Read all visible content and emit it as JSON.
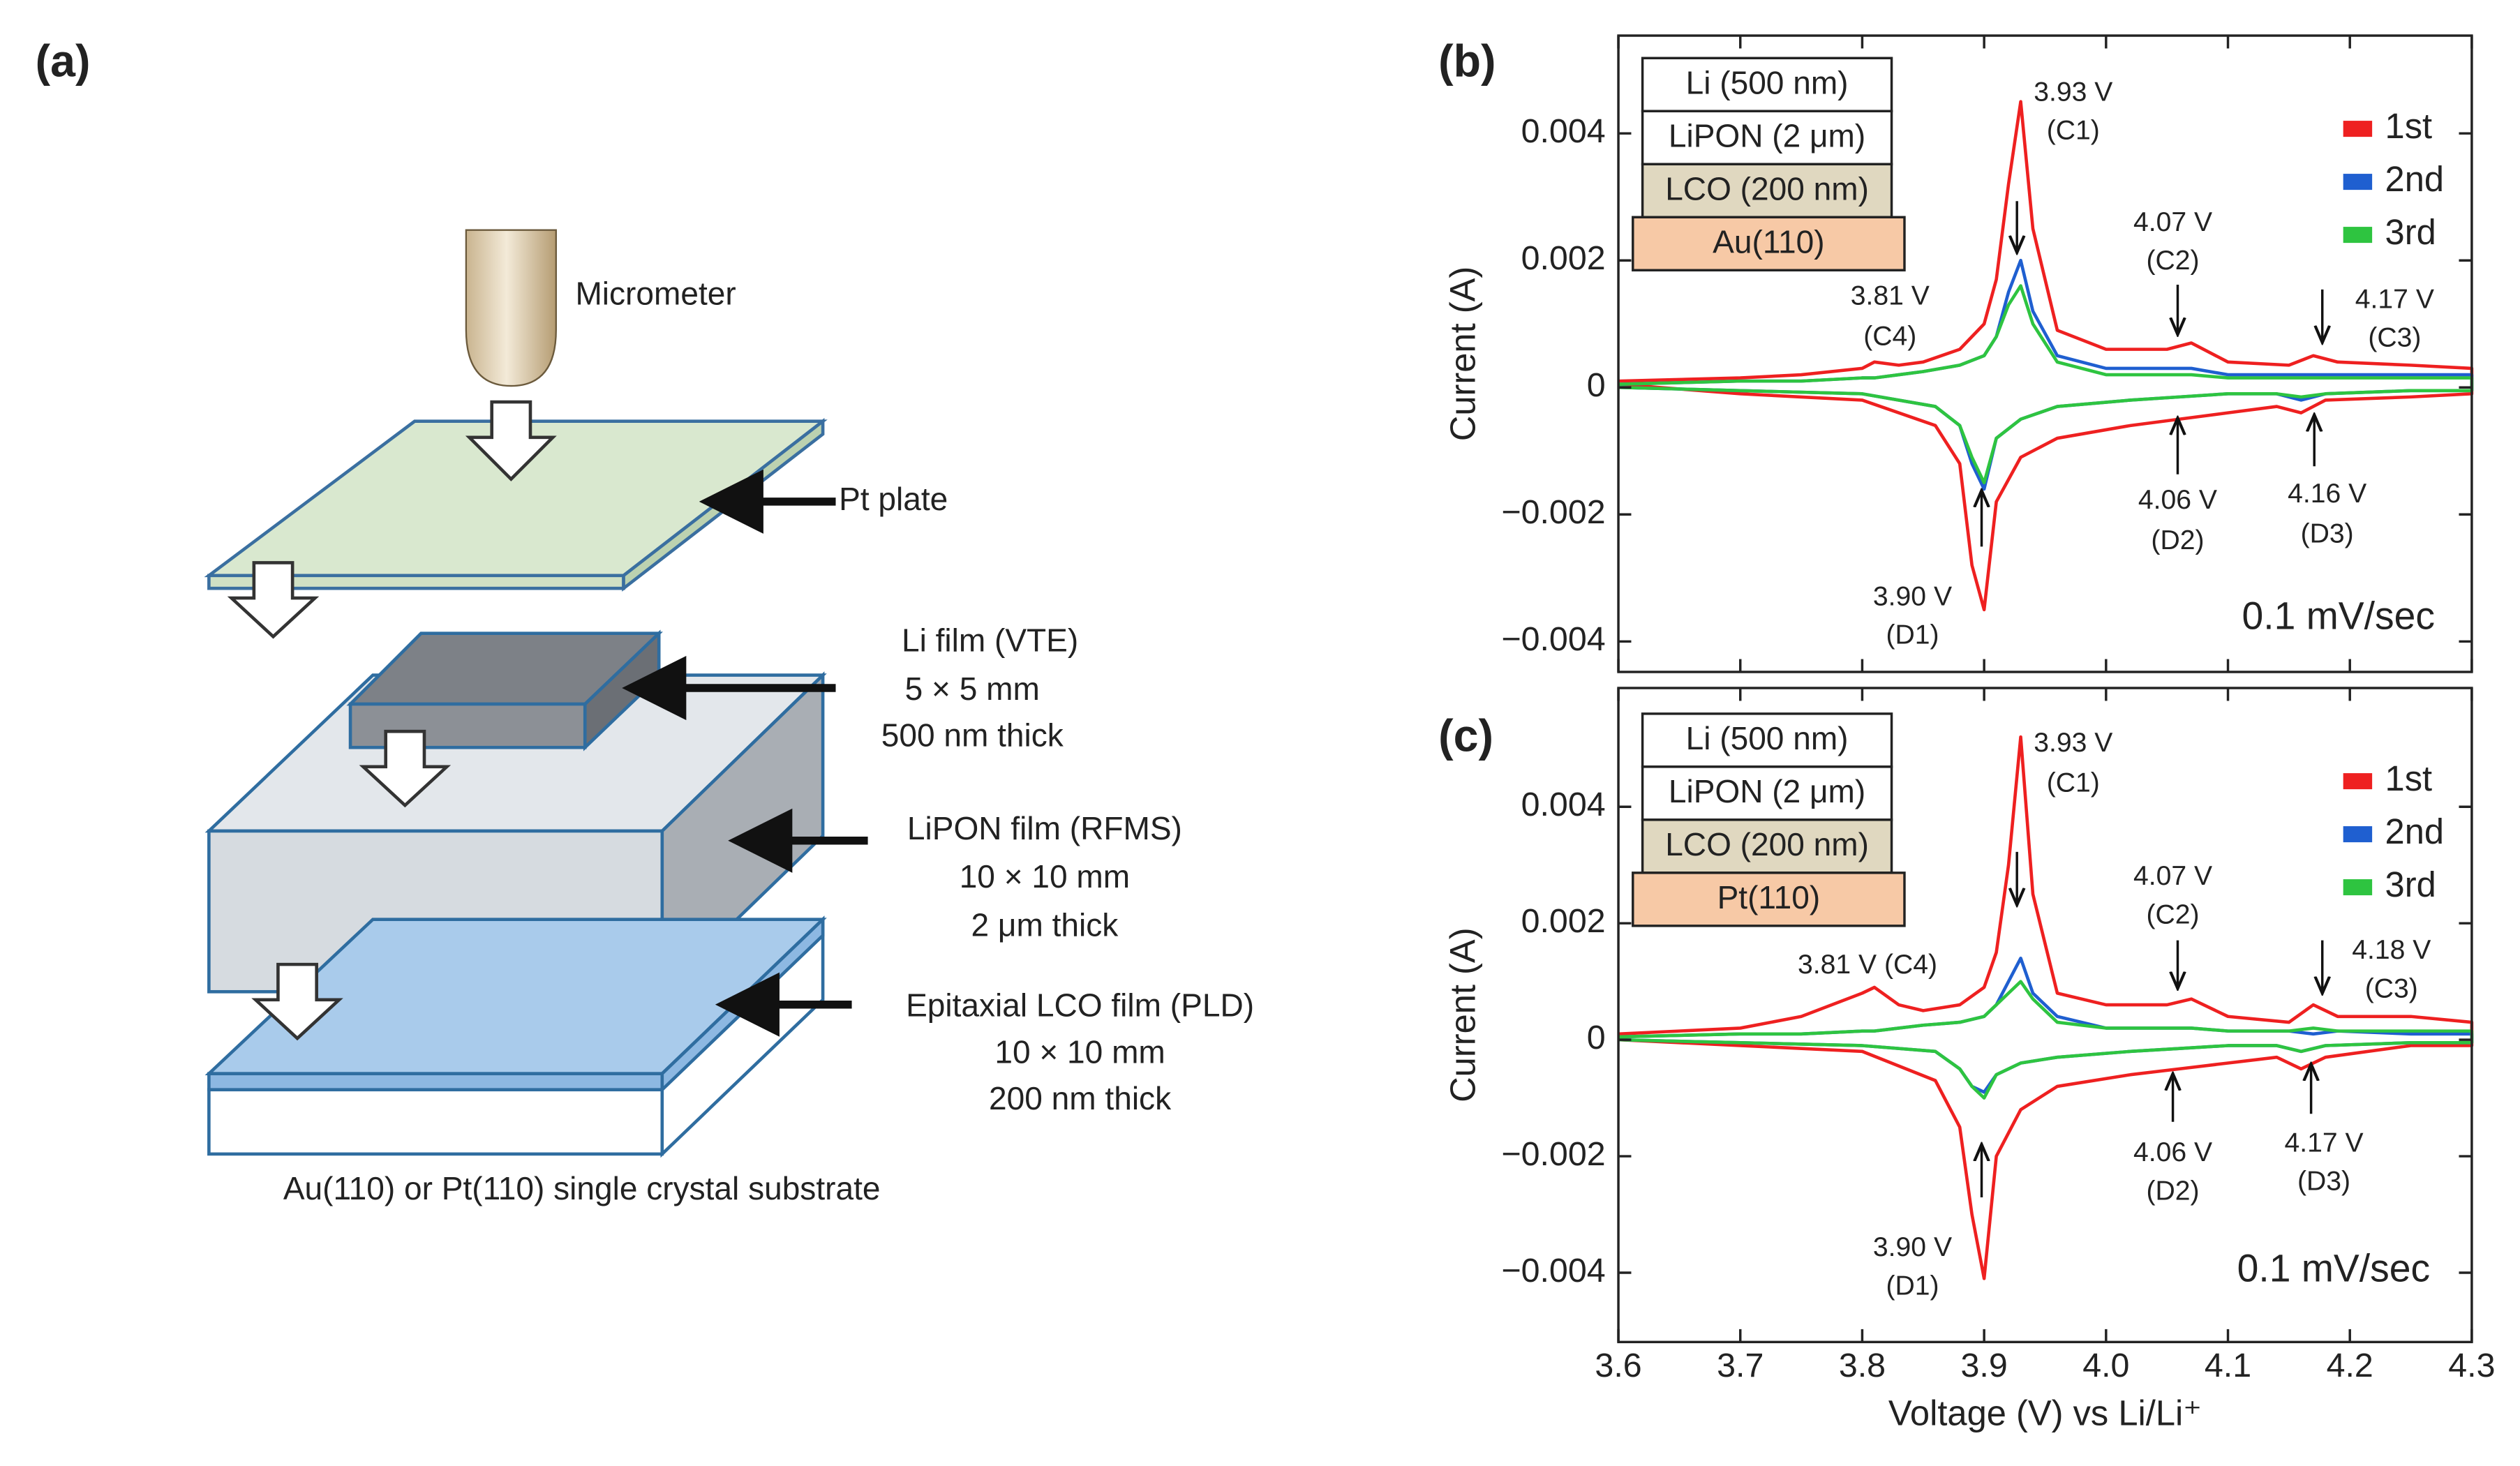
{
  "panel_a": {
    "label": "(a)",
    "micrometer": "Micrometer",
    "pt_plate": "Pt plate",
    "li_film": [
      "Li film (VTE)",
      "5 × 5 mm",
      "500 nm thick"
    ],
    "lipon_film": [
      "LiPON film (RFMS)",
      "10 × 10 mm",
      "2 μm thick"
    ],
    "lco_film": [
      "Epitaxial LCO film (PLD)",
      "10 × 10 mm",
      "200 nm thick"
    ],
    "substrate": "Au(110) or Pt(110) single crystal substrate"
  },
  "chart_data": [
    {
      "type": "line",
      "panel": "(b)",
      "ylabel": "Current (A)",
      "stack": [
        "Li (500 nm)",
        "LiPON (2 μm)",
        "LCO (200 nm)",
        "Au(110)"
      ],
      "annotations": [
        "3.93 V",
        "(C1)",
        "4.07 V",
        "(C2)",
        "3.81 V",
        "(C4)",
        "4.17 V",
        "(C3)",
        "4.06 V",
        "(D2)",
        "4.16 V",
        "(D3)",
        "3.90 V",
        "(D1)",
        "0.1 mV/sec"
      ],
      "xlim": [
        3.6,
        4.3
      ],
      "ylim": [
        -0.00448,
        0.00554
      ],
      "xticks": [
        3.6,
        3.7,
        3.8,
        3.9,
        4,
        4.1,
        4.2,
        4.3
      ],
      "x_tick_labels": false,
      "yticks": [
        {
          "value": -0.004,
          "label": "−0.004"
        },
        {
          "value": -0.002,
          "label": "−0.002"
        },
        0,
        0.002,
        0.004
      ],
      "x": [
        3.6,
        3.7,
        3.75,
        3.8,
        3.81,
        3.83,
        3.85,
        3.88,
        3.9,
        3.91,
        3.92,
        3.93,
        3.94,
        3.96,
        4.0,
        4.05,
        4.07,
        4.1,
        4.15,
        4.17,
        4.19,
        4.25,
        4.3,
        4.3,
        4.25,
        4.18,
        4.16,
        4.14,
        4.1,
        4.06,
        4.02,
        3.96,
        3.93,
        3.91,
        3.9,
        3.89,
        3.88,
        3.86,
        3.8,
        3.7,
        3.6
      ],
      "series": [
        {
          "name": "1st",
          "color": "#ee2020",
          "values": [
            0.0001,
            0.00015,
            0.0002,
            0.0003,
            0.0004,
            0.00035,
            0.0004,
            0.0006,
            0.001,
            0.0017,
            0.0032,
            0.0045,
            0.0025,
            0.0009,
            0.0006,
            0.0006,
            0.0007,
            0.0004,
            0.00035,
            0.0005,
            0.0004,
            0.00035,
            0.0003,
            -0.0001,
            -0.00015,
            -0.0002,
            -0.0004,
            -0.0003,
            -0.0004,
            -0.0005,
            -0.0006,
            -0.0008,
            -0.0011,
            -0.0018,
            -0.0035,
            -0.0028,
            -0.0012,
            -0.0006,
            -0.0002,
            -0.0001,
            5e-05
          ]
        },
        {
          "name": "2nd",
          "color": "#1f5fd0",
          "values": [
            5e-05,
            0.0001,
            0.0001,
            0.00015,
            0.00015,
            0.0002,
            0.00025,
            0.00035,
            0.0005,
            0.0008,
            0.0015,
            0.002,
            0.0012,
            0.0005,
            0.0003,
            0.0003,
            0.0003,
            0.0002,
            0.0002,
            0.0002,
            0.0002,
            0.0002,
            0.0002,
            -5e-05,
            -5e-05,
            -0.0001,
            -0.0002,
            -0.0001,
            -0.0001,
            -0.00015,
            -0.0002,
            -0.0003,
            -0.0005,
            -0.0008,
            -0.0016,
            -0.0012,
            -0.0006,
            -0.0003,
            -0.0001,
            -5e-05,
            0
          ]
        },
        {
          "name": "3rd",
          "color": "#2ec440",
          "values": [
            5e-05,
            0.0001,
            0.0001,
            0.00015,
            0.00015,
            0.0002,
            0.00025,
            0.00035,
            0.0005,
            0.0008,
            0.0013,
            0.0016,
            0.001,
            0.0004,
            0.0002,
            0.0002,
            0.0002,
            0.00015,
            0.00015,
            0.00015,
            0.00015,
            0.00015,
            0.00015,
            -5e-05,
            -5e-05,
            -0.0001,
            -0.00015,
            -0.0001,
            -0.0001,
            -0.00015,
            -0.0002,
            -0.0003,
            -0.0005,
            -0.0008,
            -0.0015,
            -0.0011,
            -0.0006,
            -0.0003,
            -0.0001,
            -5e-05,
            0
          ]
        }
      ]
    },
    {
      "type": "line",
      "panel": "(c)",
      "ylabel": "Current (A)",
      "xlabel": "Voltage (V) vs Li/Li⁺",
      "stack": [
        "Li (500 nm)",
        "LiPON (2 μm)",
        "LCO (200 nm)",
        "Pt(110)"
      ],
      "annotations": [
        "3.93 V",
        "(C1)",
        "4.07 V",
        "(C2)",
        "3.81 V (C4)",
        "4.18 V",
        "(C3)",
        "4.06 V",
        "(D2)",
        "4.17 V",
        "(D3)",
        "3.90 V",
        "(D1)",
        "0.1 mV/sec"
      ],
      "xlim": [
        3.6,
        4.3
      ],
      "ylim": [
        -0.00519,
        0.00604
      ],
      "xticks": [
        3.6,
        3.7,
        3.8,
        3.9,
        {
          "value": 4,
          "label": "4.0"
        },
        4.1,
        4.2,
        4.3
      ],
      "x_tick_labels": true,
      "yticks": [
        {
          "value": -0.004,
          "label": "−0.004"
        },
        {
          "value": -0.002,
          "label": "−0.002"
        },
        0,
        0.002,
        0.004
      ],
      "x": [
        3.6,
        3.7,
        3.75,
        3.8,
        3.81,
        3.83,
        3.85,
        3.88,
        3.9,
        3.91,
        3.92,
        3.93,
        3.94,
        3.96,
        4.0,
        4.05,
        4.07,
        4.1,
        4.15,
        4.17,
        4.19,
        4.25,
        4.3,
        4.3,
        4.25,
        4.18,
        4.16,
        4.14,
        4.1,
        4.06,
        4.02,
        3.96,
        3.93,
        3.91,
        3.9,
        3.89,
        3.88,
        3.86,
        3.8,
        3.7,
        3.6
      ],
      "series": [
        {
          "name": "1st",
          "color": "#ee2020",
          "values": [
            0.0001,
            0.0002,
            0.0004,
            0.0008,
            0.0009,
            0.0006,
            0.0005,
            0.0006,
            0.0009,
            0.0015,
            0.003,
            0.0052,
            0.0025,
            0.0008,
            0.0006,
            0.0006,
            0.0007,
            0.0004,
            0.0003,
            0.0006,
            0.0004,
            0.0004,
            0.0003,
            -0.0001,
            -0.0001,
            -0.0003,
            -0.0005,
            -0.0003,
            -0.0004,
            -0.0005,
            -0.0006,
            -0.0008,
            -0.0012,
            -0.002,
            -0.0041,
            -0.003,
            -0.0015,
            -0.0007,
            -0.0002,
            -0.0001,
            0
          ]
        },
        {
          "name": "2nd",
          "color": "#1f5fd0",
          "values": [
            5e-05,
            0.0001,
            0.0001,
            0.00015,
            0.00015,
            0.0002,
            0.00025,
            0.0003,
            0.0004,
            0.0006,
            0.001,
            0.0014,
            0.0008,
            0.0004,
            0.0002,
            0.0002,
            0.0002,
            0.00015,
            0.00015,
            0.0001,
            0.00015,
            0.0001,
            0.0001,
            -5e-05,
            -5e-05,
            -0.0001,
            -0.0002,
            -0.0001,
            -0.0001,
            -0.00015,
            -0.0002,
            -0.0003,
            -0.0004,
            -0.0006,
            -0.0009,
            -0.0008,
            -0.0005,
            -0.0002,
            -0.0001,
            -5e-05,
            0
          ]
        },
        {
          "name": "3rd",
          "color": "#2ec440",
          "values": [
            5e-05,
            0.0001,
            0.0001,
            0.00015,
            0.00015,
            0.0002,
            0.00025,
            0.0003,
            0.0004,
            0.0006,
            0.0008,
            0.001,
            0.0007,
            0.0003,
            0.0002,
            0.0002,
            0.0002,
            0.00015,
            0.00015,
            0.0002,
            0.00015,
            0.00015,
            0.00015,
            -5e-05,
            -5e-05,
            -0.0001,
            -0.0002,
            -0.0001,
            -0.0001,
            -0.00015,
            -0.0002,
            -0.0003,
            -0.0004,
            -0.0006,
            -0.001,
            -0.0008,
            -0.0005,
            -0.0002,
            -0.0001,
            -5e-05,
            0
          ]
        }
      ]
    }
  ]
}
